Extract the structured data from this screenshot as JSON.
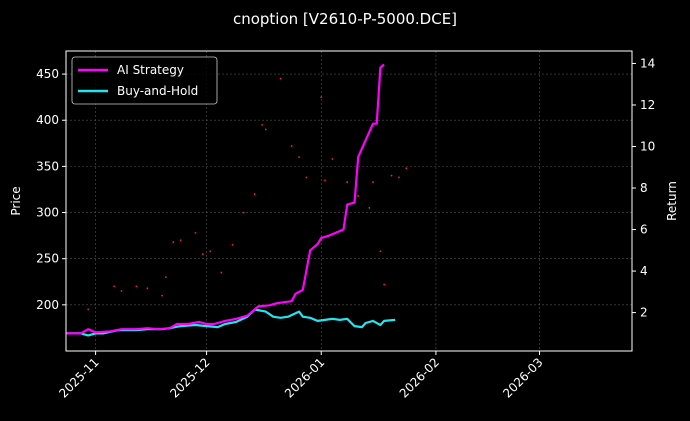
{
  "chart_data": {
    "type": "line",
    "title": "cnoption [V2610-P-5000.DCE]",
    "xlabel": "",
    "ylabel_left": "Price",
    "ylabel_right": "Return",
    "x_ticks": [
      "2025-11",
      "2025-12",
      "2026-01",
      "2026-02",
      "2026-03"
    ],
    "x_range": [
      "2025-10-24",
      "2026-03-26"
    ],
    "ylim_left": [
      150,
      475
    ],
    "yticks_left": [
      200,
      250,
      300,
      350,
      400,
      450
    ],
    "ylim_right": [
      0.15,
      14.6
    ],
    "yticks_right": [
      2,
      4,
      6,
      8,
      10,
      12,
      14
    ],
    "grid": true,
    "legend_position": "top-left",
    "series": [
      {
        "name": "AI Strategy",
        "axis": "right",
        "color": "#ff00ff",
        "points": [
          [
            "2025-10-24",
            1.0
          ],
          [
            "2025-10-28",
            1.0
          ],
          [
            "2025-10-30",
            1.2
          ],
          [
            "2025-11-01",
            1.05
          ],
          [
            "2025-11-05",
            1.1
          ],
          [
            "2025-11-08",
            1.2
          ],
          [
            "2025-11-12",
            1.2
          ],
          [
            "2025-11-15",
            1.25
          ],
          [
            "2025-11-18",
            1.2
          ],
          [
            "2025-11-21",
            1.25
          ],
          [
            "2025-11-23",
            1.45
          ],
          [
            "2025-11-26",
            1.45
          ],
          [
            "2025-11-29",
            1.55
          ],
          [
            "2025-12-01",
            1.45
          ],
          [
            "2025-12-03",
            1.45
          ],
          [
            "2025-12-06",
            1.6
          ],
          [
            "2025-12-09",
            1.7
          ],
          [
            "2025-12-12",
            1.85
          ],
          [
            "2025-12-15",
            2.3
          ],
          [
            "2025-12-18",
            2.35
          ],
          [
            "2025-12-20",
            2.45
          ],
          [
            "2025-12-22",
            2.5
          ],
          [
            "2025-12-24",
            2.55
          ],
          [
            "2025-12-25",
            2.9
          ],
          [
            "2025-12-27",
            3.1
          ],
          [
            "2025-12-29",
            5.0
          ],
          [
            "2025-12-31",
            5.3
          ],
          [
            "2026-01-01",
            5.6
          ],
          [
            "2026-01-03",
            5.7
          ],
          [
            "2026-01-07",
            6.0
          ],
          [
            "2026-01-08",
            7.2
          ],
          [
            "2026-01-10",
            7.3
          ],
          [
            "2026-01-11",
            9.5
          ],
          [
            "2026-01-13",
            10.3
          ],
          [
            "2026-01-15",
            11.1
          ],
          [
            "2026-01-16",
            11.1
          ],
          [
            "2026-01-17",
            13.8
          ],
          [
            "2026-01-18",
            13.95
          ]
        ]
      },
      {
        "name": "Buy-and-Hold",
        "axis": "right",
        "color": "#22e5f0",
        "points": [
          [
            "2025-10-24",
            1.0
          ],
          [
            "2025-10-28",
            1.0
          ],
          [
            "2025-10-30",
            0.9
          ],
          [
            "2025-11-01",
            1.0
          ],
          [
            "2025-11-03",
            1.0
          ],
          [
            "2025-11-07",
            1.15
          ],
          [
            "2025-11-12",
            1.15
          ],
          [
            "2025-11-15",
            1.2
          ],
          [
            "2025-11-19",
            1.2
          ],
          [
            "2025-11-21",
            1.25
          ],
          [
            "2025-11-24",
            1.35
          ],
          [
            "2025-11-28",
            1.4
          ],
          [
            "2025-12-01",
            1.35
          ],
          [
            "2025-12-04",
            1.3
          ],
          [
            "2025-12-06",
            1.45
          ],
          [
            "2025-12-09",
            1.55
          ],
          [
            "2025-12-12",
            1.8
          ],
          [
            "2025-12-14",
            2.15
          ],
          [
            "2025-12-17",
            2.05
          ],
          [
            "2025-12-19",
            1.8
          ],
          [
            "2025-12-21",
            1.75
          ],
          [
            "2025-12-23",
            1.8
          ],
          [
            "2025-12-26",
            2.05
          ],
          [
            "2025-12-27",
            1.8
          ],
          [
            "2025-12-29",
            1.75
          ],
          [
            "2025-12-31",
            1.6
          ],
          [
            "2026-01-02",
            1.65
          ],
          [
            "2026-01-04",
            1.7
          ],
          [
            "2026-01-06",
            1.65
          ],
          [
            "2026-01-08",
            1.7
          ],
          [
            "2026-01-10",
            1.35
          ],
          [
            "2026-01-12",
            1.3
          ],
          [
            "2026-01-13",
            1.5
          ],
          [
            "2026-01-15",
            1.6
          ],
          [
            "2026-01-17",
            1.4
          ],
          [
            "2026-01-18",
            1.6
          ],
          [
            "2026-01-21",
            1.65
          ]
        ]
      }
    ],
    "price_points": [
      [
        "2025-10-30",
        195
      ],
      [
        "2025-11-06",
        220
      ],
      [
        "2025-11-08",
        215
      ],
      [
        "2025-11-12",
        220
      ],
      [
        "2025-11-15",
        218
      ],
      [
        "2025-11-19",
        210
      ],
      [
        "2025-11-20",
        230
      ],
      [
        "2025-11-22",
        268
      ],
      [
        "2025-11-24",
        270
      ],
      [
        "2025-11-28",
        278
      ],
      [
        "2025-11-30",
        255
      ],
      [
        "2025-12-02",
        258
      ],
      [
        "2025-12-05",
        235
      ],
      [
        "2025-12-08",
        265
      ],
      [
        "2025-12-11",
        300
      ],
      [
        "2025-12-14",
        320
      ],
      [
        "2025-12-16",
        395
      ],
      [
        "2025-12-17",
        390
      ],
      [
        "2025-12-21",
        445
      ],
      [
        "2025-12-24",
        372
      ],
      [
        "2025-12-26",
        360
      ],
      [
        "2025-12-28",
        338
      ],
      [
        "2026-01-01",
        425
      ],
      [
        "2026-01-02",
        335
      ],
      [
        "2026-01-04",
        358
      ],
      [
        "2026-01-08",
        333
      ],
      [
        "2026-01-11",
        318
      ],
      [
        "2026-01-14",
        305
      ],
      [
        "2026-01-15",
        333
      ],
      [
        "2026-01-17",
        258
      ],
      [
        "2026-01-18",
        222
      ],
      [
        "2026-01-20",
        340
      ],
      [
        "2026-01-22",
        338
      ],
      [
        "2026-01-24",
        348
      ]
    ]
  }
}
